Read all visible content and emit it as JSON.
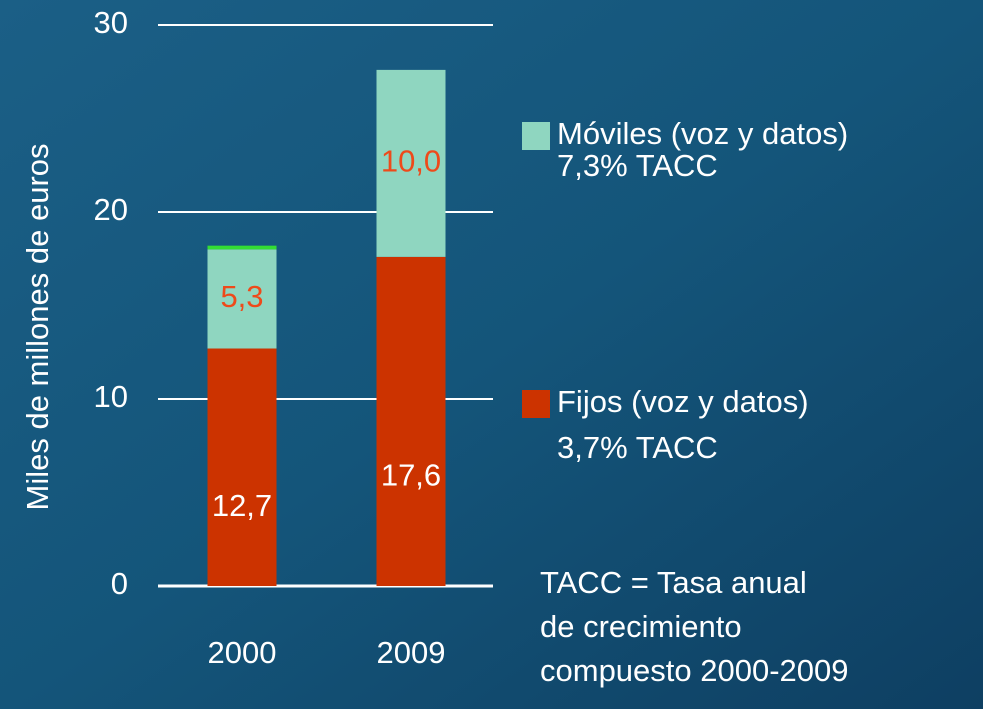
{
  "chart_data": {
    "type": "stacked_bar",
    "y_label": "Miles de millones de euros",
    "categories": [
      "2000",
      "2009"
    ],
    "ylim": [
      0,
      30
    ],
    "yticks": [
      0,
      10,
      20,
      30
    ],
    "grid": true,
    "series": [
      {
        "name": "Fijos (voz y datos)",
        "note": "3,7% TACC",
        "color": "#cc3300",
        "values": [
          12.7,
          17.6
        ],
        "value_labels": [
          "12,7",
          "17,6"
        ]
      },
      {
        "name": "Móviles (voz y datos)",
        "note": "7,3% TACC",
        "color": "#8fd6c0",
        "values": [
          5.3,
          10.0
        ],
        "value_labels": [
          "5,3",
          "10,0"
        ]
      },
      {
        "color": "#33dd33",
        "values": [
          0.2,
          0
        ]
      }
    ],
    "footnote": [
      "TACC = Tasa anual",
      "de crecimiento",
      "compuesto 2000-2009"
    ]
  }
}
